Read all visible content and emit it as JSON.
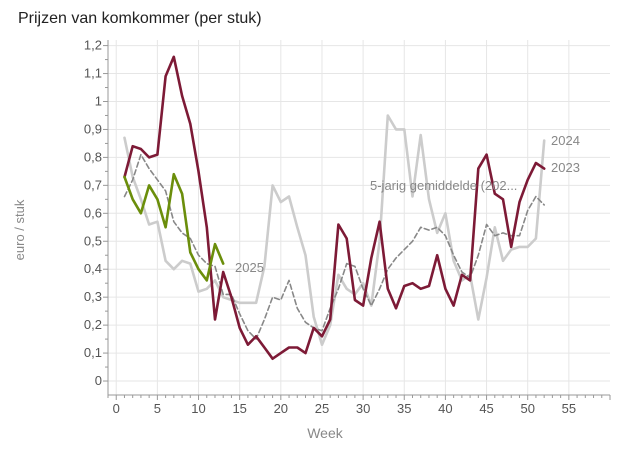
{
  "chart_data": {
    "type": "line",
    "title": "Prijzen van komkommer (per stuk)",
    "xlabel": "Week",
    "ylabel": "euro / stuk",
    "xlim": [
      -1,
      60
    ],
    "ylim": [
      -0.05,
      1.22
    ],
    "xticks": [
      0,
      5,
      10,
      15,
      20,
      25,
      30,
      35,
      40,
      45,
      50,
      55
    ],
    "xtick_labels": [
      "0",
      "5",
      "10",
      "15",
      "20",
      "25",
      "30",
      "35",
      "40",
      "45",
      "50",
      "55"
    ],
    "yticks": [
      0,
      0.1,
      0.2,
      0.3,
      0.4,
      0.5,
      0.6,
      0.7,
      0.8,
      0.9,
      1.0,
      1.1,
      1.2
    ],
    "ytick_labels": [
      "0",
      "0,1",
      "0,2",
      "0,3",
      "0,4",
      "0,5",
      "0,6",
      "0,7",
      "0,8",
      "0,9",
      "1",
      "1,1",
      "1,2"
    ],
    "grid": true,
    "series": [
      {
        "name": "2024",
        "color": "#cccccc",
        "dash": false,
        "x": [
          1,
          2,
          3,
          4,
          5,
          6,
          7,
          8,
          9,
          10,
          11,
          12,
          13,
          14,
          15,
          16,
          17,
          18,
          19,
          20,
          21,
          22,
          23,
          24,
          25,
          26,
          27,
          28,
          29,
          30,
          31,
          32,
          33,
          34,
          35,
          36,
          37,
          38,
          39,
          40,
          41,
          42,
          43,
          44,
          45,
          46,
          47,
          48,
          49,
          50,
          51,
          52
        ],
        "y": [
          0.87,
          0.73,
          0.65,
          0.56,
          0.57,
          0.43,
          0.4,
          0.43,
          0.42,
          0.32,
          0.33,
          0.36,
          0.3,
          0.29,
          0.28,
          0.28,
          0.28,
          0.41,
          0.7,
          0.64,
          0.66,
          0.55,
          0.45,
          0.23,
          0.13,
          0.2,
          0.38,
          0.33,
          0.31,
          0.35,
          0.27,
          0.5,
          0.95,
          0.9,
          0.9,
          0.66,
          0.88,
          0.65,
          0.53,
          0.6,
          0.43,
          0.36,
          0.38,
          0.22,
          0.37,
          0.55,
          0.43,
          0.47,
          0.48,
          0.48,
          0.51,
          0.86
        ]
      },
      {
        "name": "5-jarig gemiddelde (202...",
        "color": "#888888",
        "dash": true,
        "x": [
          1,
          2,
          3,
          4,
          5,
          6,
          7,
          8,
          9,
          10,
          11,
          12,
          13,
          14,
          15,
          16,
          17,
          18,
          19,
          20,
          21,
          22,
          23,
          24,
          25,
          26,
          27,
          28,
          29,
          30,
          31,
          32,
          33,
          34,
          35,
          36,
          37,
          38,
          39,
          40,
          41,
          42,
          43,
          44,
          45,
          46,
          47,
          48,
          49,
          50,
          51,
          52
        ],
        "y": [
          0.66,
          0.72,
          0.81,
          0.76,
          0.72,
          0.68,
          0.57,
          0.53,
          0.51,
          0.45,
          0.42,
          0.41,
          0.31,
          0.31,
          0.24,
          0.18,
          0.15,
          0.22,
          0.3,
          0.29,
          0.36,
          0.26,
          0.21,
          0.19,
          0.18,
          0.26,
          0.33,
          0.42,
          0.41,
          0.33,
          0.27,
          0.33,
          0.4,
          0.44,
          0.47,
          0.5,
          0.55,
          0.54,
          0.55,
          0.52,
          0.45,
          0.39,
          0.37,
          0.45,
          0.56,
          0.52,
          0.53,
          0.52,
          0.52,
          0.61,
          0.66,
          0.63
        ]
      },
      {
        "name": "2023",
        "color": "#7d1a36",
        "dash": false,
        "x": [
          1,
          2,
          3,
          4,
          5,
          6,
          7,
          8,
          9,
          10,
          11,
          12,
          13,
          14,
          15,
          16,
          17,
          18,
          19,
          20,
          21,
          22,
          23,
          24,
          25,
          26,
          27,
          28,
          29,
          30,
          31,
          32,
          33,
          34,
          35,
          36,
          37,
          38,
          39,
          40,
          41,
          42,
          43,
          44,
          45,
          46,
          47,
          48,
          49,
          50,
          51,
          52
        ],
        "y": [
          0.73,
          0.84,
          0.83,
          0.8,
          0.81,
          1.09,
          1.16,
          1.02,
          0.92,
          0.75,
          0.55,
          0.22,
          0.39,
          0.3,
          0.19,
          0.13,
          0.16,
          0.12,
          0.08,
          0.1,
          0.12,
          0.12,
          0.1,
          0.19,
          0.16,
          0.22,
          0.56,
          0.51,
          0.29,
          0.27,
          0.44,
          0.57,
          0.33,
          0.26,
          0.34,
          0.35,
          0.33,
          0.34,
          0.45,
          0.33,
          0.27,
          0.38,
          0.36,
          0.76,
          0.81,
          0.67,
          0.65,
          0.48,
          0.64,
          0.72,
          0.78,
          0.76
        ]
      },
      {
        "name": "2025",
        "color": "#6b8e0b",
        "dash": false,
        "x": [
          1,
          2,
          3,
          4,
          5,
          6,
          7,
          8,
          9,
          10,
          11,
          12,
          13
        ],
        "y": [
          0.73,
          0.65,
          0.6,
          0.7,
          0.65,
          0.55,
          0.74,
          0.67,
          0.46,
          0.4,
          0.36,
          0.49,
          0.42
        ]
      }
    ],
    "annotations": [
      "2024",
      "2023",
      "2025",
      "5-jarig gemiddelde (202..."
    ]
  }
}
